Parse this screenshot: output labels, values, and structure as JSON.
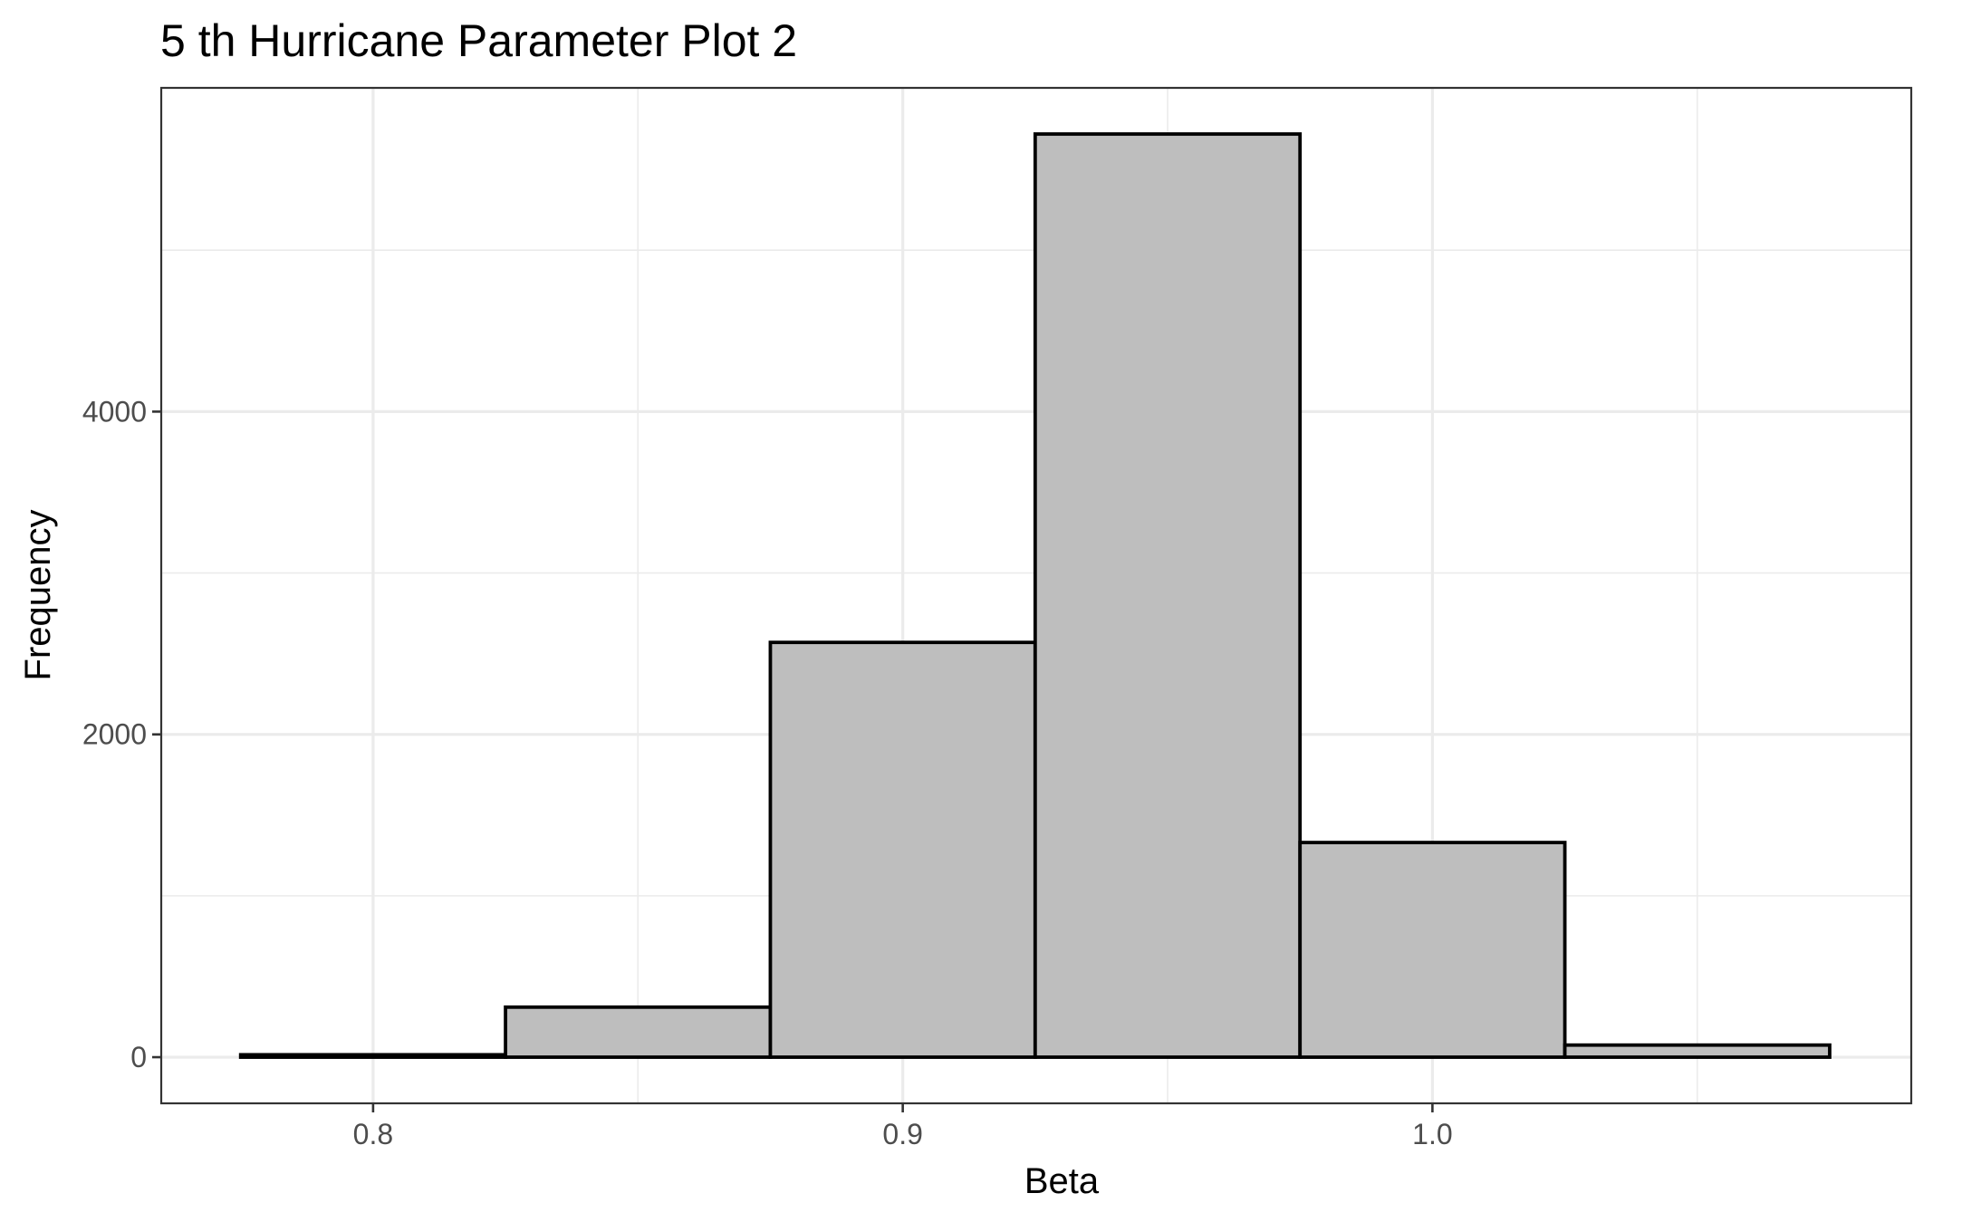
{
  "chart_data": {
    "type": "bar",
    "subtype": "histogram",
    "title": "5 th Hurricane Parameter Plot 2",
    "xlabel": "Beta",
    "ylabel": "Frequency",
    "bins": [
      {
        "x0": 0.775,
        "x1": 0.825,
        "count": 15
      },
      {
        "x0": 0.825,
        "x1": 0.875,
        "count": 310
      },
      {
        "x0": 0.875,
        "x1": 0.925,
        "count": 2570
      },
      {
        "x0": 0.925,
        "x1": 0.975,
        "count": 5720
      },
      {
        "x0": 0.975,
        "x1": 1.025,
        "count": 1330
      },
      {
        "x0": 1.025,
        "x1": 1.075,
        "count": 75
      }
    ],
    "xlim": [
      0.76,
      1.0904
    ],
    "ylim": [
      -286,
      6006
    ],
    "x_ticks": [
      0.8,
      0.9,
      1.0
    ],
    "x_tick_labels": [
      "0.8",
      "0.9",
      "1.0"
    ],
    "x_minor_ticks": [
      0.85,
      0.95,
      1.05
    ],
    "y_ticks": [
      0,
      2000,
      4000
    ],
    "y_tick_labels": [
      "0",
      "2000",
      "4000"
    ],
    "y_minor_ticks": [
      1000,
      3000,
      5000
    ],
    "grid": true,
    "fill_color": "#bebebe",
    "outline_color": "#000000",
    "grid_color": "#ebebeb",
    "panel_border_color": "#333333"
  }
}
